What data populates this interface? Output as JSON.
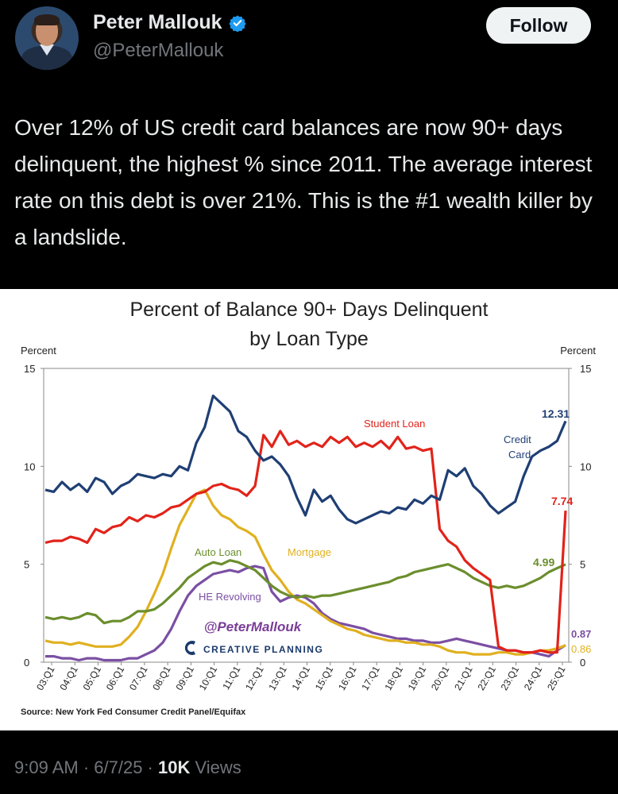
{
  "author": {
    "name": "Peter Mallouk",
    "handle": "@PeterMallouk",
    "verified": true
  },
  "follow_label": "Follow",
  "tweet_text": "Over 12% of US credit card balances are now 90+ days delinquent, the highest % since 2011. The average interest rate on this debt is over 21%. This is the #1 wealth killer by a landslide.",
  "timestamp": "9:09 AM · 6/7/25 ·",
  "views_count": "10K",
  "views_label": "Views",
  "colors": {
    "credit_card": "#1f3f74",
    "student_loan": "#e2231a",
    "auto_loan": "#6b8e2d",
    "mortgage": "#e0b020",
    "he_revolving": "#7b4fa3"
  },
  "chart_data": {
    "type": "line",
    "title": "Percent of Balance 90+ Days Delinquent",
    "subtitle": "by Loan Type",
    "ylabel_left": "Percent",
    "ylabel_right": "Percent",
    "ylim": [
      0,
      15
    ],
    "yticks": [
      0,
      5,
      10,
      15
    ],
    "grid": false,
    "xticks": [
      "03:Q1",
      "04:Q1",
      "05:Q1",
      "06:Q1",
      "07:Q1",
      "08:Q1",
      "09:Q1",
      "10:Q1",
      "11:Q1",
      "12:Q1",
      "13:Q1",
      "14:Q1",
      "15:Q1",
      "16:Q1",
      "17:Q1",
      "18:Q1",
      "19:Q1",
      "20:Q1",
      "21:Q1",
      "22:Q1",
      "23:Q1",
      "24:Q1",
      "25:Q1"
    ],
    "source": "Source: New York Fed Consumer Credit Panel/Equifax",
    "watermark_handle": "@PeterMallouk",
    "watermark_brand": "CREATIVE PLANNING",
    "series": [
      {
        "key": "credit_card",
        "name": "Credit Card",
        "end_label": "12.31",
        "values": [
          8.8,
          8.7,
          9.2,
          8.8,
          9.1,
          8.7,
          9.4,
          9.2,
          8.6,
          9.0,
          9.2,
          9.6,
          9.5,
          9.4,
          9.6,
          9.5,
          10.0,
          9.8,
          11.2,
          12.0,
          13.6,
          13.2,
          12.8,
          11.8,
          11.5,
          10.8,
          10.3,
          10.5,
          10.1,
          9.5,
          8.4,
          7.5,
          8.8,
          8.2,
          8.5,
          7.8,
          7.3,
          7.1,
          7.3,
          7.5,
          7.7,
          7.6,
          7.9,
          7.8,
          8.3,
          8.1,
          8.5,
          8.3,
          9.8,
          9.5,
          9.9,
          9.0,
          8.6,
          8.0,
          7.6,
          7.9,
          8.2,
          9.5,
          10.5,
          10.8,
          11.0,
          11.3,
          12.31
        ]
      },
      {
        "key": "student_loan",
        "name": "Student Loan",
        "end_label": "7.74",
        "values": [
          6.1,
          6.2,
          6.2,
          6.4,
          6.3,
          6.1,
          6.8,
          6.6,
          6.9,
          7.0,
          7.4,
          7.2,
          7.5,
          7.4,
          7.6,
          7.9,
          8.0,
          8.3,
          8.6,
          8.7,
          9.0,
          9.1,
          8.9,
          8.8,
          8.5,
          9.0,
          11.6,
          11.0,
          11.8,
          11.1,
          11.3,
          11.0,
          11.2,
          11.0,
          11.5,
          11.2,
          11.5,
          11.0,
          11.2,
          11.0,
          11.3,
          10.9,
          11.5,
          10.9,
          11.0,
          10.8,
          10.9,
          6.8,
          6.2,
          5.9,
          5.2,
          4.8,
          4.5,
          4.2,
          0.8,
          0.6,
          0.6,
          0.5,
          0.5,
          0.6,
          0.5,
          0.5,
          7.74
        ]
      },
      {
        "key": "auto_loan",
        "name": "Auto Loan",
        "end_label": "4.99",
        "values": [
          2.3,
          2.2,
          2.3,
          2.2,
          2.3,
          2.5,
          2.4,
          2.0,
          2.1,
          2.1,
          2.3,
          2.6,
          2.6,
          2.7,
          3.0,
          3.4,
          3.8,
          4.3,
          4.6,
          4.9,
          5.1,
          5.0,
          5.2,
          5.1,
          4.9,
          4.7,
          4.3,
          3.9,
          3.6,
          3.4,
          3.3,
          3.4,
          3.3,
          3.4,
          3.4,
          3.5,
          3.6,
          3.7,
          3.8,
          3.9,
          4.0,
          4.1,
          4.3,
          4.4,
          4.6,
          4.7,
          4.8,
          4.9,
          5.0,
          4.8,
          4.6,
          4.3,
          4.1,
          3.9,
          3.8,
          3.9,
          3.8,
          3.9,
          4.1,
          4.3,
          4.6,
          4.8,
          4.99
        ]
      },
      {
        "key": "mortgage",
        "name": "Mortgage",
        "end_label": "0.86",
        "values": [
          1.1,
          1.0,
          1.0,
          0.9,
          1.0,
          0.9,
          0.8,
          0.8,
          0.8,
          0.9,
          1.3,
          1.8,
          2.6,
          3.5,
          4.5,
          5.8,
          7.0,
          7.8,
          8.6,
          8.8,
          8.0,
          7.5,
          7.3,
          6.9,
          6.7,
          6.4,
          5.5,
          4.7,
          4.2,
          3.6,
          3.2,
          3.0,
          2.7,
          2.4,
          2.1,
          1.9,
          1.7,
          1.6,
          1.4,
          1.3,
          1.2,
          1.1,
          1.1,
          1.0,
          1.0,
          0.9,
          0.9,
          0.8,
          0.6,
          0.5,
          0.5,
          0.4,
          0.4,
          0.4,
          0.5,
          0.5,
          0.4,
          0.4,
          0.5,
          0.6,
          0.6,
          0.7,
          0.86
        ]
      },
      {
        "key": "he_revolving",
        "name": "HE Revolving",
        "end_label": "0.87",
        "values": [
          0.3,
          0.3,
          0.2,
          0.2,
          0.1,
          0.2,
          0.2,
          0.1,
          0.1,
          0.1,
          0.2,
          0.2,
          0.4,
          0.6,
          1.0,
          1.7,
          2.6,
          3.4,
          3.9,
          4.2,
          4.5,
          4.6,
          4.7,
          4.6,
          4.8,
          4.9,
          4.8,
          3.6,
          3.1,
          3.3,
          3.4,
          3.3,
          3.0,
          2.5,
          2.2,
          2.0,
          1.9,
          1.8,
          1.7,
          1.5,
          1.4,
          1.3,
          1.2,
          1.2,
          1.1,
          1.1,
          1.0,
          1.0,
          1.1,
          1.2,
          1.1,
          1.0,
          0.9,
          0.8,
          0.7,
          0.6,
          0.6,
          0.5,
          0.5,
          0.4,
          0.3,
          0.6,
          0.87
        ]
      }
    ]
  }
}
